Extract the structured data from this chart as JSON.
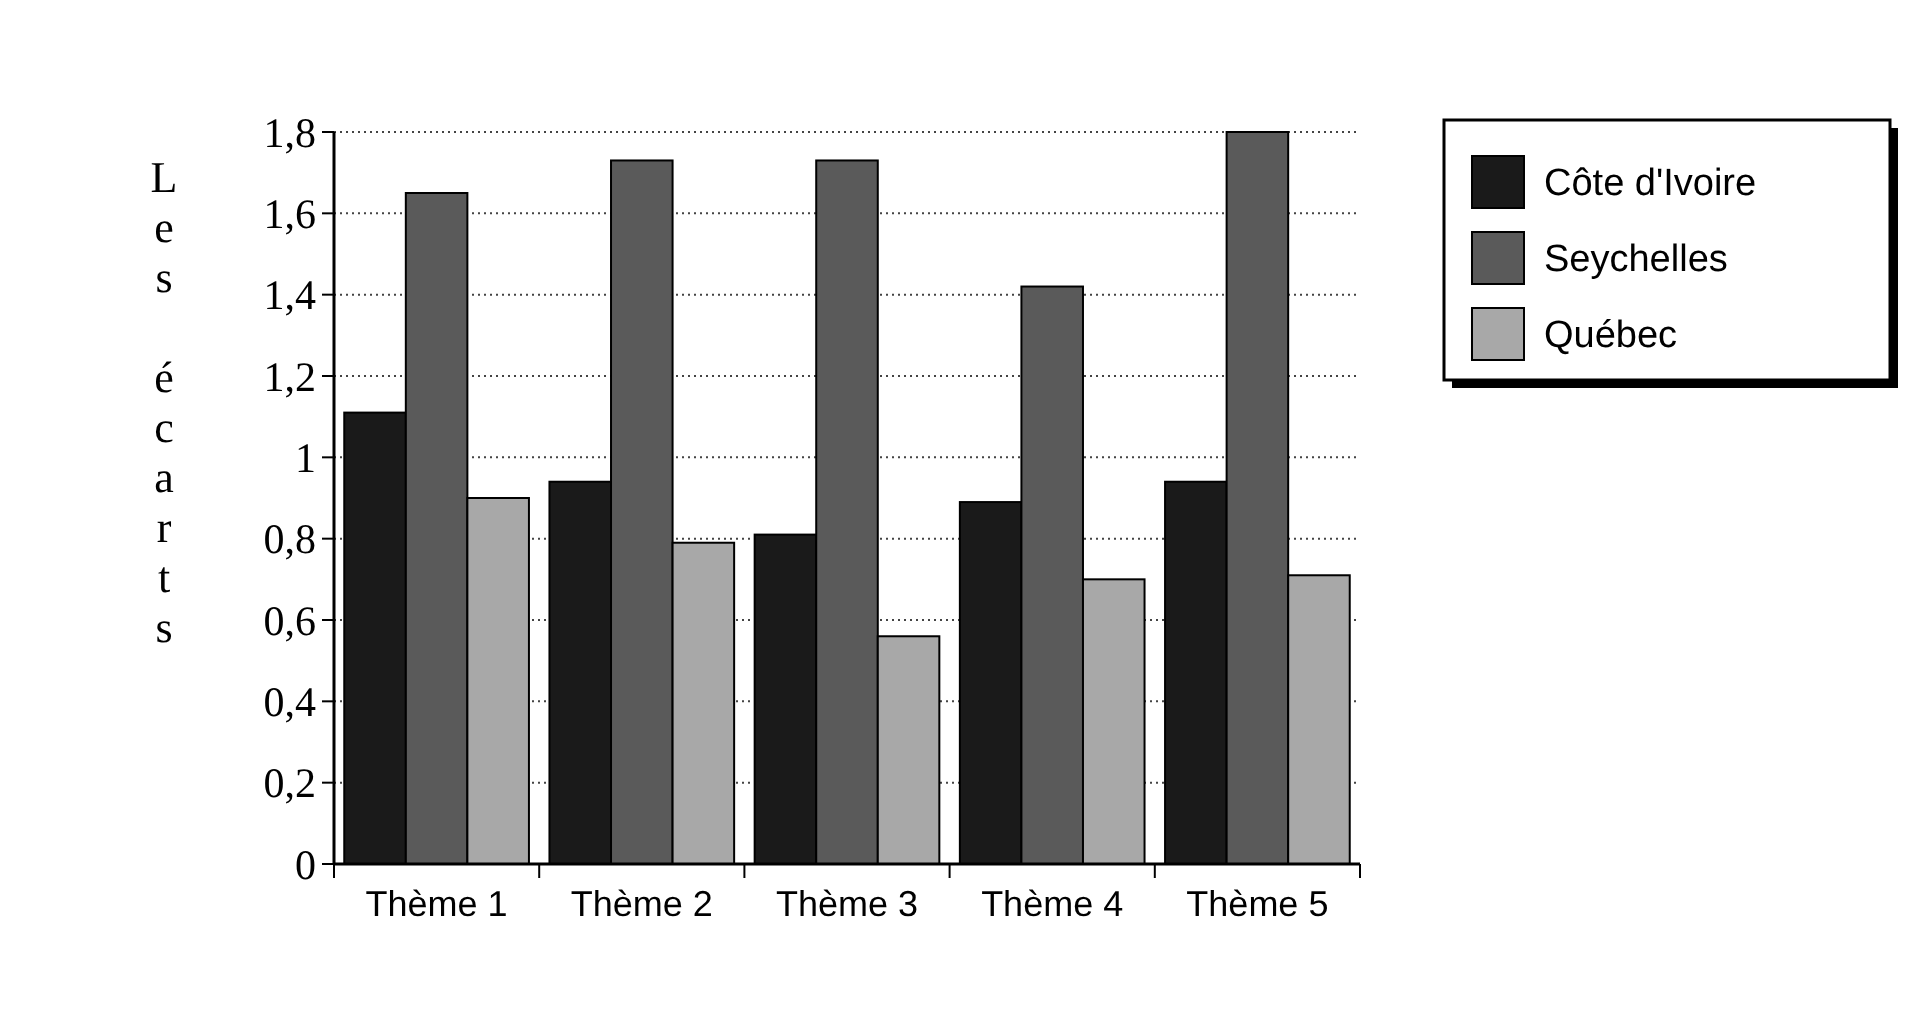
{
  "chart_data": {
    "type": "bar",
    "ylabel": "Les écarts",
    "categories": [
      "Thème 1",
      "Thème 2",
      "Thème 3",
      "Thème 4",
      "Thème 5"
    ],
    "series": [
      {
        "name": "Côte d'Ivoire",
        "color": "#1a1a1a",
        "values": [
          1.11,
          0.94,
          0.81,
          0.89,
          0.94
        ]
      },
      {
        "name": "Seychelles",
        "color": "#5a5a5a",
        "values": [
          1.65,
          1.73,
          1.73,
          1.42,
          1.8
        ]
      },
      {
        "name": "Québec",
        "color": "#a8a8a8",
        "values": [
          0.9,
          0.79,
          0.56,
          0.7,
          0.71
        ]
      }
    ],
    "ylim": [
      0,
      1.8
    ],
    "yticks": [
      0,
      {
        "value": 0.2,
        "label": "0,2"
      },
      {
        "value": 0.4,
        "label": "0,4"
      },
      {
        "value": 0.6,
        "label": "0,6"
      },
      {
        "value": 0.8,
        "label": "0,8"
      },
      1,
      {
        "value": 1.2,
        "label": "1,2"
      },
      {
        "value": 1.4,
        "label": "1,4"
      },
      {
        "value": 1.6,
        "label": "1,6"
      },
      {
        "value": 1.8,
        "label": "1,8"
      }
    ],
    "grid": "y",
    "legend": "top right"
  }
}
